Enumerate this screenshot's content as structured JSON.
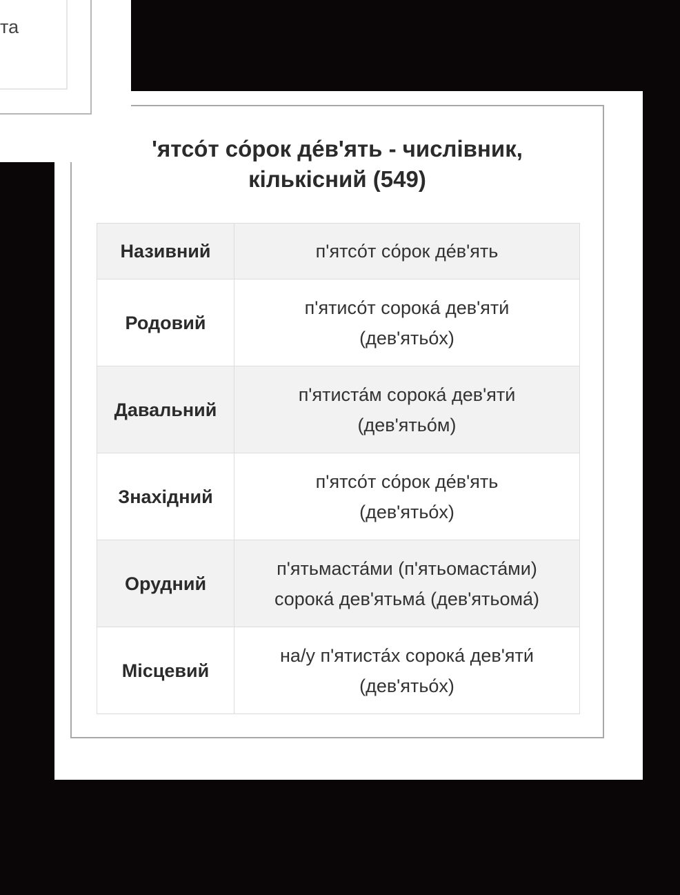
{
  "overlay_fragment": "та",
  "title_line1": "'ятсо́т со́рок де́в'ять - числівник,",
  "title_line2": "кількісний (549)",
  "rows": [
    {
      "case": "Називний",
      "line1": "п'ятсо́т со́рок де́в'ять",
      "line2": ""
    },
    {
      "case": "Родовий",
      "line1": "п'ятисо́т сорока́ дев'яти́",
      "line2": "(дев'ятьо́х)"
    },
    {
      "case": "Давальний",
      "line1": "п'ятиста́м сорока́ дев'яти́",
      "line2": "(дев'ятьо́м)"
    },
    {
      "case": "Знахідний",
      "line1": "п'ятсо́т со́рок де́в'ять",
      "line2": "(дев'ятьо́х)"
    },
    {
      "case": "Орудний",
      "line1": "п'ятьмаста́ми (п'ятьомаста́ми)",
      "line2": "сорока́ дев'ятьма́ (дев'ятьома́)"
    },
    {
      "case": "Місцевий",
      "line1": "на/у п'ятиста́х сорока́ дев'яти́",
      "line2": "(дев'ятьо́х)"
    }
  ]
}
